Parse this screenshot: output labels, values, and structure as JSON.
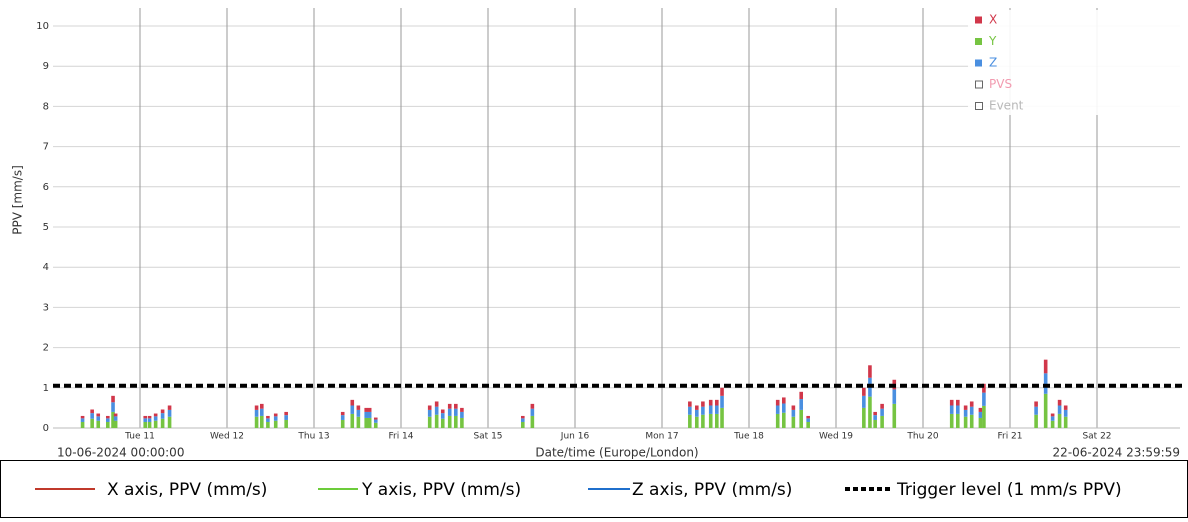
{
  "chart_data": {
    "type": "bar",
    "stacked": true,
    "ylabel": "PPV [mm/s]",
    "xlabel": "Date/time (Europe/London)",
    "x_start_label": "10-06-2024 00:00:00",
    "x_end_label": "22-06-2024 23:59:59",
    "xlim": [
      0,
      13
    ],
    "ylim": [
      0,
      10.05
    ],
    "yticks": [
      0,
      1,
      2,
      3,
      4,
      5,
      6,
      7,
      8,
      9,
      10
    ],
    "xticks": [
      {
        "value": 1,
        "label": "Tue 11"
      },
      {
        "value": 2,
        "label": "Wed 12"
      },
      {
        "value": 3,
        "label": "Thu 13"
      },
      {
        "value": 4,
        "label": "Fri 14"
      },
      {
        "value": 5,
        "label": "Sat 15"
      },
      {
        "value": 6,
        "label": "Jun 16"
      },
      {
        "value": 7,
        "label": "Mon 17"
      },
      {
        "value": 8,
        "label": "Tue 18"
      },
      {
        "value": 9,
        "label": "Wed 19"
      },
      {
        "value": 10,
        "label": "Thu 20"
      },
      {
        "value": 11,
        "label": "Fri 21"
      },
      {
        "value": 12,
        "label": "Sat 22"
      }
    ],
    "grid": true,
    "x": [
      0.34,
      0.45,
      0.52,
      0.63,
      0.69,
      0.72,
      1.06,
      1.11,
      1.18,
      1.26,
      1.34,
      2.34,
      2.4,
      2.47,
      2.56,
      2.68,
      3.33,
      3.44,
      3.51,
      3.6,
      3.64,
      3.71,
      4.33,
      4.41,
      4.48,
      4.56,
      4.63,
      4.7,
      5.4,
      5.51,
      7.32,
      7.4,
      7.47,
      7.56,
      7.63,
      7.69,
      8.33,
      8.4,
      8.51,
      8.6,
      8.68,
      9.32,
      9.39,
      9.45,
      9.53,
      9.67,
      10.33,
      10.4,
      10.49,
      10.56,
      10.66,
      10.7,
      11.3,
      11.41,
      11.49,
      11.57,
      11.64
    ],
    "series": [
      {
        "name": "X",
        "color": "#d1374a",
        "values": [
          0.06,
          0.09,
          0.07,
          0.06,
          0.16,
          0.07,
          0.06,
          0.06,
          0.07,
          0.09,
          0.11,
          0.11,
          0.12,
          0.06,
          0.07,
          0.08,
          0.08,
          0.14,
          0.11,
          0.1,
          0.1,
          0.05,
          0.11,
          0.13,
          0.09,
          0.12,
          0.12,
          0.1,
          0.06,
          0.12,
          0.13,
          0.11,
          0.13,
          0.14,
          0.14,
          0.2,
          0.14,
          0.15,
          0.11,
          0.18,
          0.06,
          0.2,
          0.31,
          0.08,
          0.12,
          0.24,
          0.14,
          0.14,
          0.11,
          0.13,
          0.1,
          0.22,
          0.13,
          0.34,
          0.07,
          0.14,
          0.11
        ]
      },
      {
        "name": "Y",
        "color": "#76c442",
        "values": [
          0.15,
          0.23,
          0.18,
          0.15,
          0.4,
          0.18,
          0.15,
          0.15,
          0.18,
          0.23,
          0.28,
          0.28,
          0.3,
          0.15,
          0.18,
          0.2,
          0.2,
          0.35,
          0.28,
          0.25,
          0.25,
          0.13,
          0.28,
          0.33,
          0.23,
          0.3,
          0.3,
          0.25,
          0.15,
          0.3,
          0.33,
          0.28,
          0.33,
          0.35,
          0.35,
          0.5,
          0.35,
          0.38,
          0.28,
          0.45,
          0.15,
          0.5,
          0.78,
          0.2,
          0.3,
          0.6,
          0.35,
          0.35,
          0.28,
          0.33,
          0.25,
          0.55,
          0.33,
          0.85,
          0.18,
          0.35,
          0.28
        ]
      },
      {
        "name": "Z",
        "color": "#4a8fe0",
        "values": [
          0.09,
          0.14,
          0.11,
          0.09,
          0.24,
          0.11,
          0.09,
          0.09,
          0.11,
          0.14,
          0.17,
          0.17,
          0.18,
          0.09,
          0.11,
          0.12,
          0.12,
          0.21,
          0.17,
          0.15,
          0.15,
          0.08,
          0.17,
          0.2,
          0.14,
          0.18,
          0.18,
          0.15,
          0.09,
          0.18,
          0.2,
          0.17,
          0.2,
          0.21,
          0.21,
          0.3,
          0.21,
          0.23,
          0.17,
          0.27,
          0.09,
          0.3,
          0.47,
          0.12,
          0.18,
          0.36,
          0.21,
          0.21,
          0.17,
          0.2,
          0.15,
          0.33,
          0.2,
          0.51,
          0.11,
          0.21,
          0.17
        ]
      }
    ],
    "extra_legend": [
      {
        "name": "PVS",
        "color": "#f29bb0"
      },
      {
        "name": "Event",
        "color": "#b8b8b8"
      }
    ],
    "trigger": {
      "value": 1.05,
      "label": "Trigger level (1 mm/s PPV)",
      "color": "#000000"
    },
    "bottom_legend": [
      {
        "label": "X axis, PPV (mm/s)",
        "color": "#c0392b"
      },
      {
        "label": "Y axis, PPV (mm/s)",
        "color": "#6ccc3a"
      },
      {
        "label": "Z axis, PPV (mm/s)",
        "color": "#1f6fcc"
      }
    ]
  }
}
